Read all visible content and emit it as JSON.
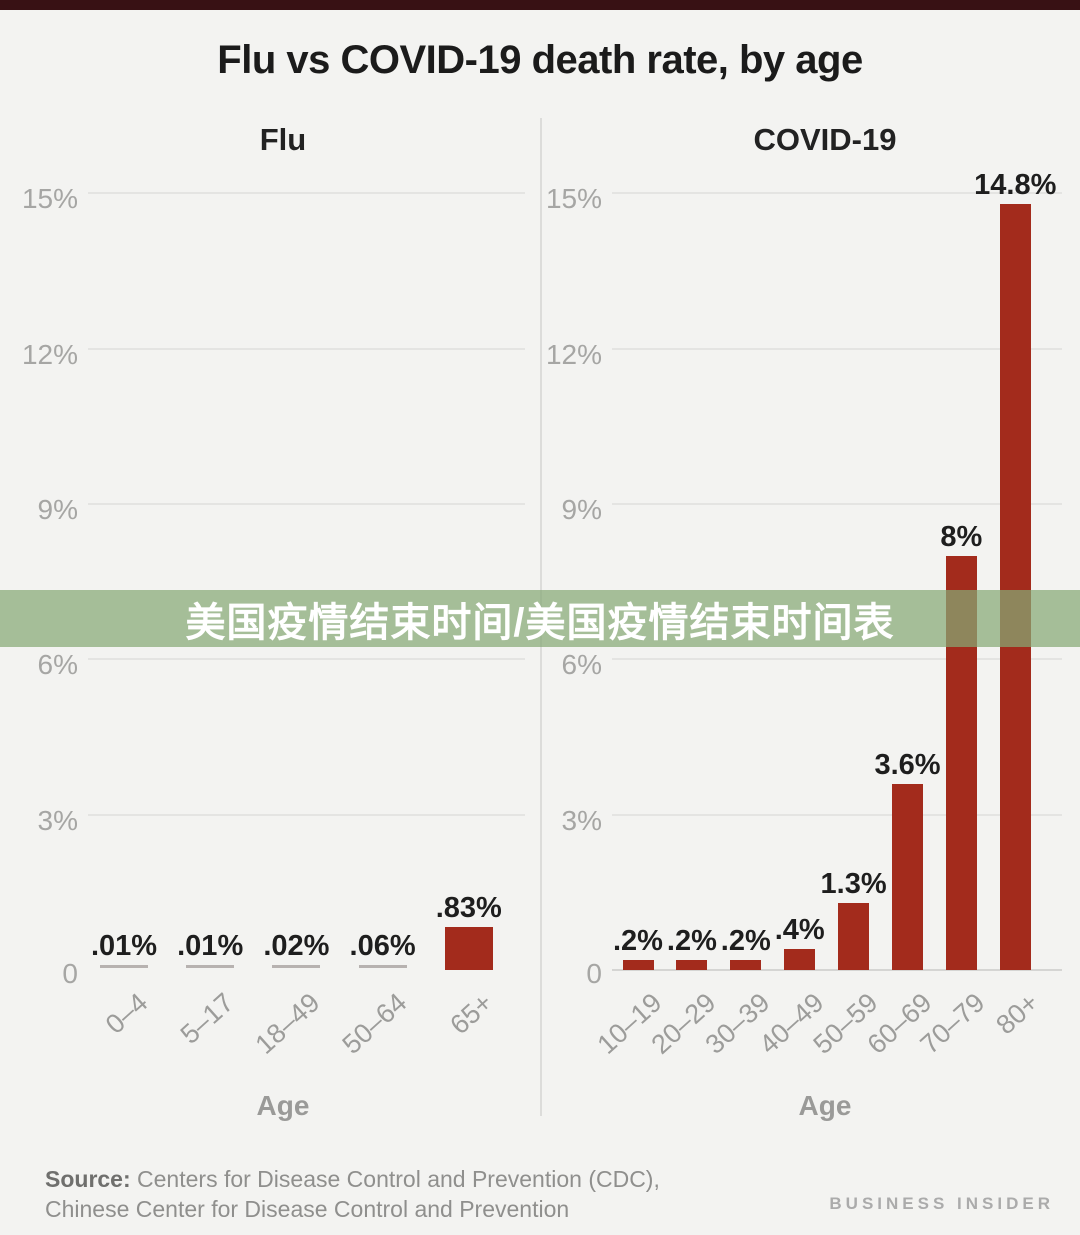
{
  "page": {
    "title": "Flu vs COVID-19 death rate, by age",
    "banner": {
      "text": "美国疫情结束时间/美国疫情结束时间表"
    },
    "footer": {
      "source_label": "Source:",
      "source_line1": " Centers for Disease Control and Prevention (CDC),",
      "source_line2": "Chinese Center for Disease Control and Prevention",
      "brand": "BUSINESS INSIDER"
    },
    "colors": {
      "bar_red": "#a32b1c",
      "flat_bar_gray": "#b7b2b0",
      "top_strip": "#381114",
      "background": "#f3f3f1",
      "banner_green": "rgba(134,169,118,0.72)",
      "banner_text": "#ffffff",
      "gridline": "#e4e4e2",
      "axis_text": "#a6a6a4"
    }
  },
  "chart_data": [
    {
      "type": "bar",
      "title": "Flu",
      "xlabel": "Age",
      "ylabel": "",
      "ylim": [
        0,
        15
      ],
      "grid": true,
      "yticks": [
        {
          "value": 15,
          "label": "15%"
        },
        {
          "value": 12,
          "label": "12%"
        },
        {
          "value": 9,
          "label": "9%"
        },
        {
          "value": 6,
          "label": "6%"
        },
        {
          "value": 3,
          "label": "3%"
        }
      ],
      "zero_label": "0",
      "categories": [
        "0–4",
        "5–17",
        "18–49",
        "50–64",
        "65+"
      ],
      "values": [
        0.01,
        0.01,
        0.02,
        0.06,
        0.83
      ],
      "value_labels": [
        ".01%",
        ".01%",
        ".02%",
        ".06%",
        ".83%"
      ]
    },
    {
      "type": "bar",
      "title": "COVID-19",
      "xlabel": "Age",
      "ylabel": "",
      "ylim": [
        0,
        15
      ],
      "grid": true,
      "yticks": [
        {
          "value": 15,
          "label": "15%"
        },
        {
          "value": 12,
          "label": "12%"
        },
        {
          "value": 9,
          "label": "9%"
        },
        {
          "value": 6,
          "label": "6%"
        },
        {
          "value": 3,
          "label": "3%"
        }
      ],
      "zero_label": "0",
      "categories": [
        "10–19",
        "20–29",
        "30–39",
        "40–49",
        "50–59",
        "60–69",
        "70–79",
        "80+"
      ],
      "values": [
        0.2,
        0.2,
        0.2,
        0.4,
        1.3,
        3.6,
        8,
        14.8
      ],
      "value_labels": [
        ".2%",
        ".2%",
        ".2%",
        ".4%",
        "1.3%",
        "3.6%",
        "8%",
        "14.8%"
      ]
    }
  ]
}
